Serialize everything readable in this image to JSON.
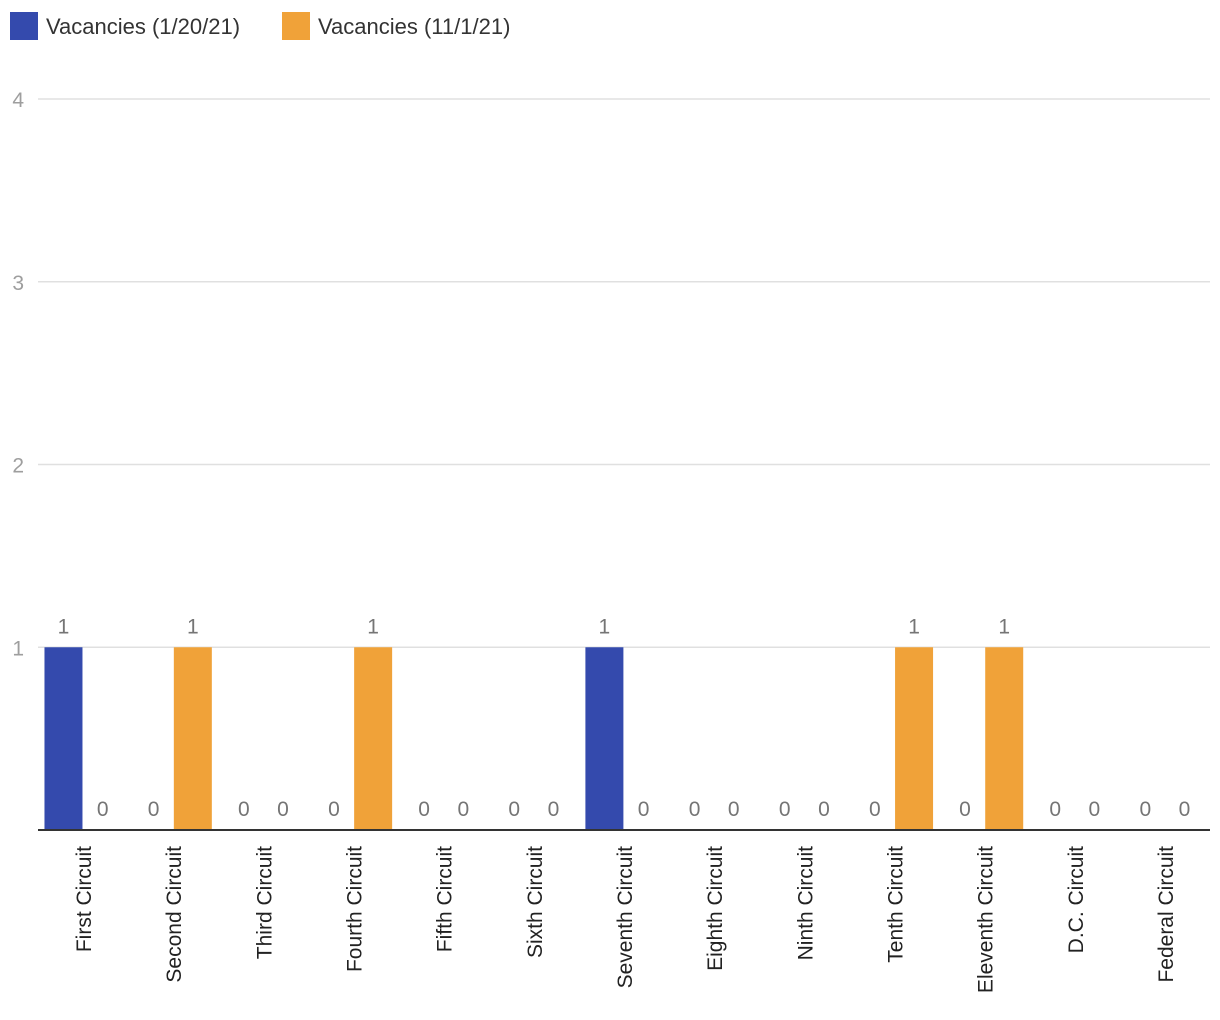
{
  "chart_data": {
    "type": "bar",
    "categories": [
      "First Circuit",
      "Second Circuit",
      "Third Circuit",
      "Fourth Circuit",
      "Fifth Circuit",
      "Sixth Circuit",
      "Seventh Circuit",
      "Eighth Circuit",
      "Ninth Circuit",
      "Tenth Circuit",
      "Eleventh Circuit",
      "D.C. Circuit",
      "Federal Circuit"
    ],
    "series": [
      {
        "name": "Vacancies (1/20/21)",
        "color": "#344aad",
        "values": [
          1,
          0,
          0,
          0,
          0,
          0,
          1,
          0,
          0,
          0,
          0,
          0,
          0
        ]
      },
      {
        "name": "Vacancies (11/1/21)",
        "color": "#f0a239",
        "values": [
          0,
          1,
          0,
          1,
          0,
          0,
          0,
          0,
          0,
          1,
          1,
          0,
          0
        ]
      }
    ],
    "ylim": [
      0,
      4
    ],
    "yticks": [
      1,
      2,
      3,
      4
    ],
    "grid": true,
    "legend": "top-left",
    "data_labels": true
  }
}
